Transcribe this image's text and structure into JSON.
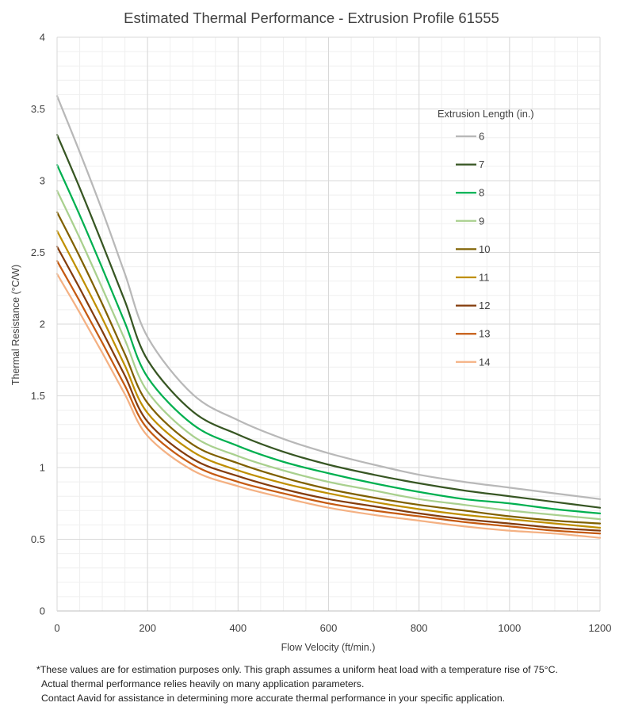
{
  "chart_data": {
    "type": "line",
    "title": "Estimated Thermal Performance - Extrusion Profile 61555",
    "xlabel": "Flow Velocity (ft/min.)",
    "ylabel": "Thermal Resistance (°C/W)",
    "xlim": [
      0,
      1200
    ],
    "ylim": [
      0,
      4
    ],
    "xticks": [
      0,
      200,
      400,
      600,
      800,
      1000,
      1200
    ],
    "yticks": [
      0,
      0.5,
      1,
      1.5,
      2,
      2.5,
      3,
      3.5,
      4
    ],
    "xtick_labels": [
      "0",
      "200",
      "400",
      "600",
      "800",
      "1000",
      "1200"
    ],
    "ytick_labels": [
      "0",
      "0.5",
      "1",
      "1.5",
      "2",
      "2.5",
      "3",
      "3.5",
      "4"
    ],
    "grid": true,
    "legend_title": "Extrusion Length (in.)",
    "legend_position": "right",
    "x": [
      0,
      50,
      100,
      150,
      200,
      300,
      400,
      500,
      600,
      700,
      800,
      900,
      1000,
      1100,
      1200
    ],
    "series": [
      {
        "name": "6",
        "color": "#b8b8b8",
        "values": [
          3.59,
          3.2,
          2.79,
          2.35,
          1.91,
          1.51,
          1.33,
          1.2,
          1.1,
          1.02,
          0.95,
          0.9,
          0.86,
          0.82,
          0.78
        ]
      },
      {
        "name": "7",
        "color": "#375623",
        "values": [
          3.32,
          2.95,
          2.56,
          2.16,
          1.75,
          1.39,
          1.23,
          1.11,
          1.02,
          0.95,
          0.89,
          0.84,
          0.8,
          0.76,
          0.72
        ]
      },
      {
        "name": "8",
        "color": "#00b050",
        "values": [
          3.11,
          2.76,
          2.39,
          2.01,
          1.63,
          1.3,
          1.15,
          1.04,
          0.96,
          0.89,
          0.83,
          0.78,
          0.75,
          0.71,
          0.68
        ]
      },
      {
        "name": "9",
        "color": "#a9d08e",
        "values": [
          2.93,
          2.6,
          2.25,
          1.89,
          1.53,
          1.22,
          1.08,
          0.98,
          0.9,
          0.84,
          0.78,
          0.74,
          0.7,
          0.67,
          0.64
        ]
      },
      {
        "name": "10",
        "color": "#7f6000",
        "values": [
          2.78,
          2.47,
          2.14,
          1.79,
          1.45,
          1.16,
          1.03,
          0.93,
          0.85,
          0.79,
          0.74,
          0.7,
          0.66,
          0.63,
          0.61
        ]
      },
      {
        "name": "11",
        "color": "#bf8f00",
        "values": [
          2.65,
          2.35,
          2.04,
          1.71,
          1.38,
          1.11,
          0.98,
          0.89,
          0.82,
          0.76,
          0.71,
          0.67,
          0.64,
          0.61,
          0.58
        ]
      },
      {
        "name": "12",
        "color": "#843c0c",
        "values": [
          2.54,
          2.25,
          1.95,
          1.64,
          1.32,
          1.06,
          0.94,
          0.85,
          0.78,
          0.73,
          0.68,
          0.64,
          0.61,
          0.58,
          0.56
        ]
      },
      {
        "name": "13",
        "color": "#c55a11",
        "values": [
          2.44,
          2.16,
          1.87,
          1.57,
          1.27,
          1.02,
          0.9,
          0.82,
          0.75,
          0.7,
          0.66,
          0.62,
          0.59,
          0.56,
          0.54
        ]
      },
      {
        "name": "14",
        "color": "#f4b183",
        "values": [
          2.35,
          2.08,
          1.8,
          1.51,
          1.22,
          0.98,
          0.87,
          0.79,
          0.72,
          0.67,
          0.63,
          0.59,
          0.56,
          0.54,
          0.51
        ]
      }
    ]
  },
  "notes": {
    "line1": "*These values are for estimation purposes only. This graph assumes a uniform heat load with a temperature rise of 75°C.",
    "line2": "Actual thermal performance relies heavily on many application parameters.",
    "line3": "Contact Aavid for assistance in determining more accurate thermal performance in your specific application."
  }
}
